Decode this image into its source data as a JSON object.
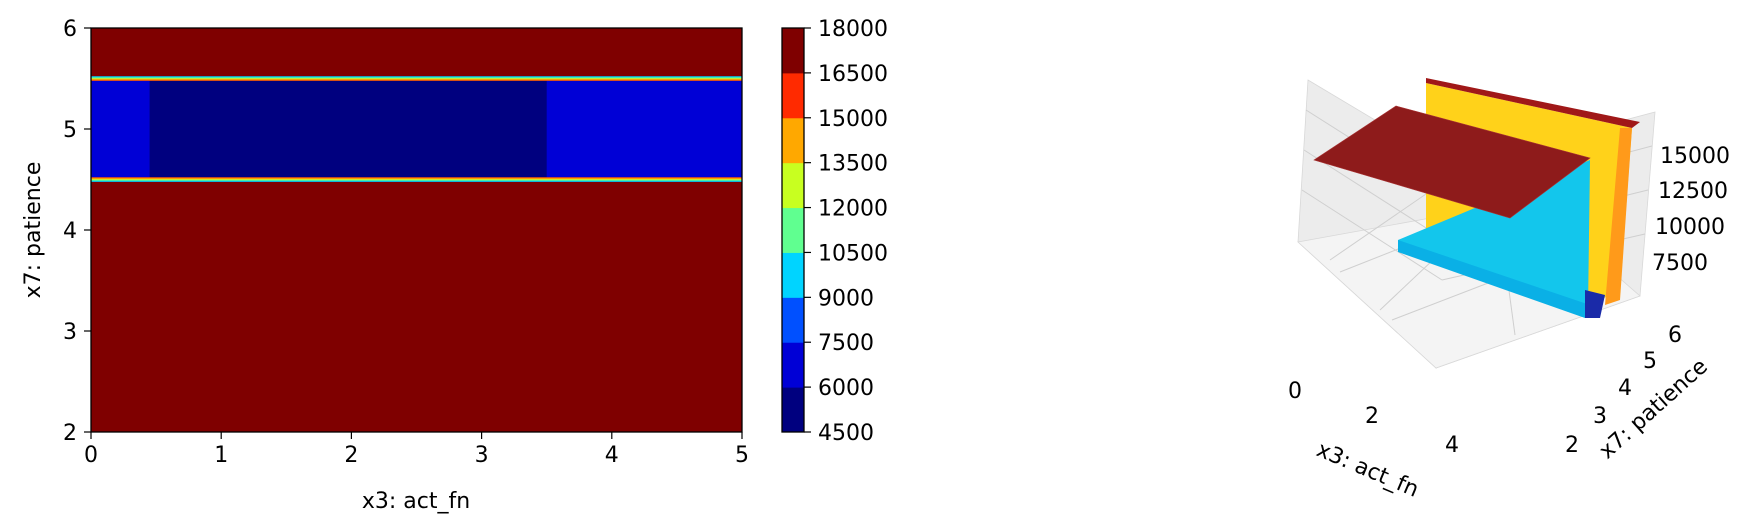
{
  "chart_data": [
    {
      "type": "heatmap",
      "title": "",
      "xlabel": "x3: act_fn",
      "ylabel": "x7: patience",
      "xlim": [
        0,
        5
      ],
      "ylim": [
        2,
        6
      ],
      "x_ticks": [
        "0",
        "1",
        "2",
        "3",
        "4",
        "5"
      ],
      "y_ticks": [
        "2",
        "3",
        "4",
        "5",
        "6"
      ],
      "colormap": "jet",
      "colorbar": {
        "levels": [
          4500,
          6000,
          7500,
          9000,
          10500,
          12000,
          13500,
          15000,
          16500,
          18000
        ],
        "tick_labels": [
          "4500",
          "6000",
          "7500",
          "9000",
          "10500",
          "12000",
          "13500",
          "15000",
          "16500",
          "18000"
        ],
        "colors": [
          "#00007f",
          "#0000d6",
          "#0050ff",
          "#00d4ff",
          "#60ff90",
          "#c8ff20",
          "#ffa800",
          "#ff2a00",
          "#7f0000"
        ]
      },
      "regions": [
        {
          "x": [
            0,
            5
          ],
          "y": [
            2,
            4.5
          ],
          "value": 18000
        },
        {
          "x": [
            0,
            5
          ],
          "y": [
            4.5,
            5.5
          ],
          "value": 7000
        },
        {
          "x": [
            0.45,
            3.5
          ],
          "y": [
            4.5,
            5.5
          ],
          "value": 5000
        },
        {
          "x": [
            0,
            5
          ],
          "y": [
            5.5,
            6
          ],
          "value": 18000
        }
      ],
      "grid": false
    },
    {
      "type": "surface3d",
      "title": "",
      "xlabel": "x3: act_fn",
      "ylabel": "x7: patience",
      "zlabel": "",
      "x_ticks": [
        "0",
        "2",
        "4"
      ],
      "y_ticks": [
        "2",
        "3",
        "4",
        "5",
        "6"
      ],
      "z_ticks": [
        "7500",
        "10000",
        "12500",
        "15000"
      ],
      "xlim": [
        0,
        5
      ],
      "ylim": [
        2,
        6
      ],
      "colormap": "jet",
      "surface": [
        {
          "y": [
            2,
            4.5
          ],
          "x": [
            0,
            5
          ],
          "z": 18000
        },
        {
          "y": [
            4.5,
            5.5
          ],
          "x": [
            0,
            5
          ],
          "z": 7000
        },
        {
          "y": [
            5.5,
            6
          ],
          "x": [
            0,
            5
          ],
          "z": 18000
        }
      ],
      "grid": true
    }
  ]
}
